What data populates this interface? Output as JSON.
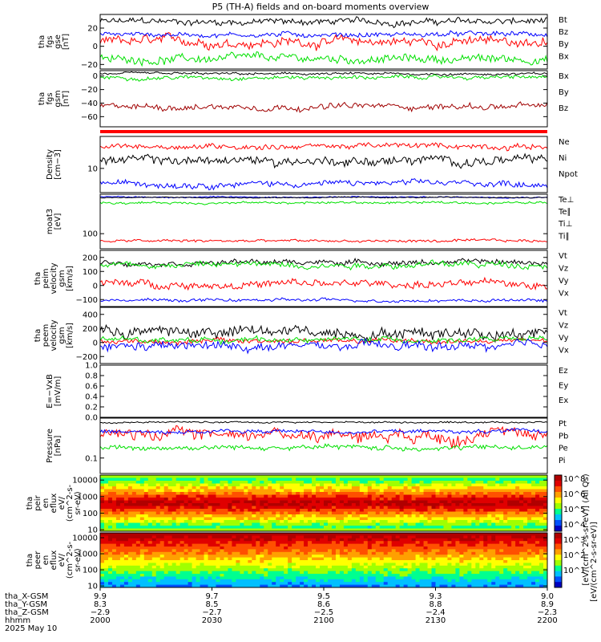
{
  "title": "P5 (TH-A) fields and on-board moments overview",
  "colors": {
    "black": "#000000",
    "red": "#ff0000",
    "blue": "#0000ff",
    "green": "#00e000",
    "darkred": "#a00000"
  },
  "chart_data": [
    {
      "type": "line",
      "ylabel_lines": [
        "tha",
        "fgs",
        "gse",
        "[nT]"
      ],
      "ylim": [
        -25,
        35
      ],
      "yticks": [
        {
          "v": 20,
          "label": "20"
        },
        {
          "v": 0,
          "label": "0"
        },
        {
          "v": -20,
          "label": "−20"
        }
      ],
      "series": [
        {
          "name": "Bt",
          "color": "#000000",
          "base": 27,
          "noise": 4
        },
        {
          "name": "Bz",
          "color": "#ff0000",
          "base": 5,
          "noise": 6
        },
        {
          "name": "By",
          "color": "#00e000",
          "base": -14,
          "noise": 5
        },
        {
          "name": "Bx",
          "color": "#0000ff",
          "base": 13,
          "noise": 3
        }
      ]
    },
    {
      "type": "line",
      "ylabel_lines": [
        "tha",
        "fgs",
        "gsm",
        "[nT]"
      ],
      "ylim": [
        -75,
        8
      ],
      "yticks": [
        {
          "v": 0,
          "label": "0"
        },
        {
          "v": -20,
          "label": "−20"
        },
        {
          "v": -40,
          "label": "−40"
        },
        {
          "v": -60,
          "label": "−60"
        }
      ],
      "series": [
        {
          "name": "Bx",
          "color": "#000000",
          "base": 3,
          "noise": 2
        },
        {
          "name": "By",
          "color": "#00e000",
          "base": -2,
          "noise": 3
        },
        {
          "name": "Bz",
          "color": "#a00000",
          "base": -45,
          "noise": 5
        }
      ]
    },
    {
      "type": "line",
      "ylabel_lines": [
        "Density",
        "[cm−3]"
      ],
      "ylim": [
        5,
        25
      ],
      "yticks": [
        {
          "v": 10,
          "label": "10"
        }
      ],
      "series": [
        {
          "name": "Ne",
          "color": "#ff0000",
          "base": 19,
          "noise": 1.6
        },
        {
          "name": "Ni",
          "color": "#000000",
          "base": 12.5,
          "noise": 1.8
        },
        {
          "name": "Npot",
          "color": "#0000ff",
          "base": 6.5,
          "noise": 0.6
        }
      ]
    },
    {
      "type": "line",
      "ylabel_lines": [
        "moat3",
        "[eV]"
      ],
      "ylim": [
        60,
        380
      ],
      "yticks": [
        {
          "v": 100,
          "label": "100"
        }
      ],
      "series": [
        {
          "name": "Te⊥",
          "color": "#0000ff",
          "base": 345,
          "noise": 8
        },
        {
          "name": "Te∥",
          "color": "#000000",
          "base": 340,
          "noise": 6
        },
        {
          "name": "Ti⊥",
          "color": "#ff0000",
          "base": 78,
          "noise": 4
        },
        {
          "name": "Ti∥",
          "color": "#00e000",
          "base": 285,
          "noise": 12
        }
      ]
    },
    {
      "type": "line",
      "ylabel_lines": [
        "tha",
        "peim",
        "velocity",
        "gsm",
        "[km/s]"
      ],
      "ylim": [
        -150,
        250
      ],
      "yticks": [
        {
          "v": 200,
          "label": "200"
        },
        {
          "v": 100,
          "label": "100"
        },
        {
          "v": 0,
          "label": "0"
        },
        {
          "v": -100,
          "label": "−100"
        }
      ],
      "series": [
        {
          "name": "Vt",
          "color": "#000000",
          "base": 165,
          "noise": 20
        },
        {
          "name": "Vz",
          "color": "#ff0000",
          "base": 10,
          "noise": 30
        },
        {
          "name": "Vy",
          "color": "#00e000",
          "base": 150,
          "noise": 25
        },
        {
          "name": "Vx",
          "color": "#0000ff",
          "base": -105,
          "noise": 12
        }
      ]
    },
    {
      "type": "line",
      "ylabel_lines": [
        "tha",
        "peem",
        "velocity",
        "gsm",
        "[km/s]"
      ],
      "ylim": [
        -300,
        500
      ],
      "yticks": [
        {
          "v": 400,
          "label": "400"
        },
        {
          "v": 200,
          "label": "200"
        },
        {
          "v": 0,
          "label": "0"
        },
        {
          "v": -200,
          "label": "−200"
        }
      ],
      "series": [
        {
          "name": "Vt",
          "color": "#000000",
          "base": 150,
          "noise": 90
        },
        {
          "name": "Vz",
          "color": "#ff0000",
          "base": 20,
          "noise": 40
        },
        {
          "name": "Vy",
          "color": "#00e000",
          "base": 40,
          "noise": 40
        },
        {
          "name": "Vx",
          "color": "#0000ff",
          "base": -60,
          "noise": 70
        }
      ]
    },
    {
      "type": "line",
      "ylabel_lines": [
        "E=−VxB",
        "[mV/m]"
      ],
      "ylim": [
        0,
        1
      ],
      "yticks": [
        {
          "v": 1.0,
          "label": "1.0"
        },
        {
          "v": 0.8,
          "label": "0.8"
        },
        {
          "v": 0.6,
          "label": "0.6"
        },
        {
          "v": 0.4,
          "label": "0.4"
        },
        {
          "v": 0.2,
          "label": "0.2"
        },
        {
          "v": 0.0,
          "label": "0.0"
        }
      ],
      "series": [
        {
          "name": "Ez",
          "color": "#ff0000"
        },
        {
          "name": "Ey",
          "color": "#00e000"
        },
        {
          "name": "Ex",
          "color": "#0000ff"
        }
      ]
    },
    {
      "type": "line",
      "ylabel_lines": [
        "Pressure",
        "[nPa]"
      ],
      "ylim": [
        0.05,
        0.6
      ],
      "yticks": [
        {
          "v": 0.1,
          "label": "0.1"
        }
      ],
      "series": [
        {
          "name": "Pt",
          "color": "#000000",
          "base": 0.5,
          "noise": 0.02
        },
        {
          "name": "Pb",
          "color": "#ff0000",
          "base": 0.3,
          "noise": 0.08
        },
        {
          "name": "Pe",
          "color": "#00e000",
          "base": 0.16,
          "noise": 0.02
        },
        {
          "name": "Pi",
          "color": "#0000ff",
          "base": 0.33,
          "noise": 0.03
        }
      ]
    },
    {
      "type": "heatmap",
      "ylabel_lines": [
        "tha",
        "peir",
        "en",
        "eflux",
        "eV/",
        "(cm^2-s-",
        "sr-eV)"
      ],
      "ylim": [
        8,
        20000
      ],
      "yticks": [
        {
          "v": 10000,
          "label": "10000"
        },
        {
          "v": 1000,
          "label": "1000"
        },
        {
          "v": 100,
          "label": "100"
        },
        {
          "v": 10,
          "label": "10"
        }
      ]
    },
    {
      "type": "heatmap",
      "ylabel_lines": [
        "tha",
        "peer",
        "en",
        "eflux",
        "eV/",
        "(cm^2-s-",
        "sr-eV)"
      ],
      "ylim": [
        8,
        20000
      ],
      "yticks": [
        {
          "v": 10000,
          "label": "10000"
        },
        {
          "v": 1000,
          "label": "1000"
        },
        {
          "v": 100,
          "label": "100"
        },
        {
          "v": 10,
          "label": "10"
        }
      ]
    }
  ],
  "colorbar": {
    "labels": [
      "10^8",
      "10^6",
      "10^5",
      "10^4",
      "10^3",
      "10^2",
      "10^1"
    ],
    "label": "[eV/(cm^2-s-sr-eV)] (All Qs)",
    "label2": "[eV/(cm^2-s-sr-eV)]"
  },
  "x_axis": {
    "rows": [
      {
        "name": "tha_X-GSM",
        "values": [
          "9.9",
          "9.7",
          "9.5",
          "9.3",
          "9.0"
        ]
      },
      {
        "name": "tha_Y-GSM",
        "values": [
          "8.3",
          "8.5",
          "8.6",
          "8.8",
          "8.9"
        ]
      },
      {
        "name": "tha_Z-GSM",
        "values": [
          "−2.9",
          "−2.7",
          "−2.5",
          "−2.4",
          "−2.3"
        ]
      },
      {
        "name": "hhmm",
        "values": [
          "2000",
          "2030",
          "2100",
          "2130",
          "2200"
        ]
      }
    ],
    "date": "2025 May 10"
  }
}
